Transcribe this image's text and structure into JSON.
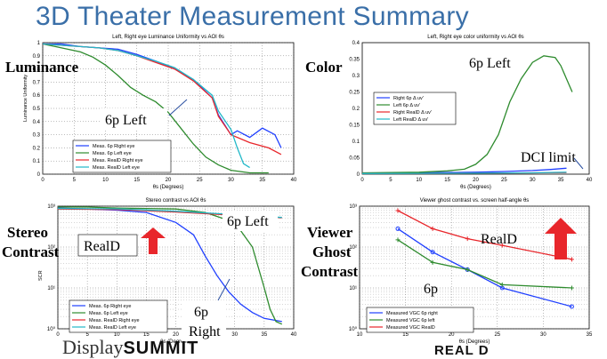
{
  "slide_title": "3D Theater Measurement Summary",
  "side_labels": {
    "luminance": "Luminance",
    "color": "Color",
    "stereo": [
      "Stereo",
      "Contrast"
    ],
    "ghost": [
      "Viewer",
      "Ghost",
      "Contrast"
    ]
  },
  "footer": {
    "brand_a": "Display",
    "brand_b": "SUMMIT",
    "reald_logo": "REAL D"
  },
  "colors": {
    "blue": "#1f3fff",
    "green": "#2e8b2e",
    "red": "#e8262b",
    "cyan": "#22b8c8",
    "arrow": "#e8262b"
  },
  "chart_data": [
    {
      "type": "line",
      "title": "Left, Right eye Luminance Uniformity vs AOI θs",
      "xlabel": "θs (Degrees)",
      "ylabel": "Luminance Uniformity",
      "xlim": [
        0,
        40
      ],
      "ylim": [
        0,
        1
      ],
      "xticks": [
        "0",
        "5",
        "10",
        "15",
        "20",
        "25",
        "30",
        "35",
        "40"
      ],
      "yticks": [
        "0",
        "0.1",
        "0.2",
        "0.3",
        "0.4",
        "0.5",
        "0.6",
        "0.7",
        "0.8",
        "0.9",
        "1"
      ],
      "grid": true,
      "legend_position": "bottom-left",
      "annotations": [
        {
          "text": "6p Left"
        }
      ],
      "series": [
        {
          "name": "Meas. 6p Right eye",
          "color": "blue",
          "x": [
            0,
            3,
            6,
            9,
            12,
            15,
            18,
            21,
            24,
            27,
            28,
            30,
            31,
            33,
            35,
            37,
            38
          ],
          "y": [
            0.99,
            0.99,
            0.97,
            0.96,
            0.95,
            0.91,
            0.86,
            0.8,
            0.72,
            0.58,
            0.45,
            0.3,
            0.33,
            0.28,
            0.35,
            0.3,
            0.2
          ]
        },
        {
          "name": "Meas. 6p Left eye",
          "color": "green",
          "x": [
            0,
            2,
            4,
            6,
            8,
            10,
            12,
            14,
            16,
            18,
            20,
            22,
            24,
            26,
            28,
            30,
            33,
            36
          ],
          "y": [
            0.99,
            0.97,
            0.95,
            0.93,
            0.89,
            0.83,
            0.75,
            0.66,
            0.6,
            0.55,
            0.47,
            0.35,
            0.23,
            0.13,
            0.07,
            0.03,
            0.01,
            0.01
          ]
        },
        {
          "name": "Meas. RealD Right eye",
          "color": "red",
          "x": [
            0,
            3,
            6,
            9,
            12,
            15,
            18,
            21,
            24,
            27,
            28,
            30,
            33,
            36,
            38
          ],
          "y": [
            0.99,
            0.98,
            0.97,
            0.96,
            0.94,
            0.9,
            0.85,
            0.8,
            0.71,
            0.58,
            0.44,
            0.3,
            0.24,
            0.2,
            0.15
          ]
        },
        {
          "name": "Meas. RealD Left eye",
          "color": "cyan",
          "x": [
            0,
            3,
            6,
            9,
            12,
            15,
            18,
            21,
            24,
            27,
            28,
            30,
            31,
            32,
            33
          ],
          "y": [
            0.99,
            0.98,
            0.97,
            0.96,
            0.94,
            0.9,
            0.86,
            0.81,
            0.72,
            0.6,
            0.48,
            0.34,
            0.2,
            0.08,
            0.05
          ]
        }
      ]
    },
    {
      "type": "line",
      "title": "Left, Right eye color uniformity vs AOI θs",
      "xlabel": "θs (Degrees)",
      "ylabel": "",
      "xlim": [
        0,
        40
      ],
      "ylim": [
        0,
        0.4
      ],
      "xticks": [
        "0",
        "5",
        "10",
        "15",
        "20",
        "25",
        "30",
        "35",
        "40"
      ],
      "yticks": [
        "0",
        "0.05",
        "0.1",
        "0.15",
        "0.2",
        "0.25",
        "0.3",
        "0.35",
        "0.4"
      ],
      "grid": false,
      "legend_position": "middle-left",
      "annotations": [
        {
          "text": "6p Left"
        },
        {
          "text": "DCI limit"
        }
      ],
      "series": [
        {
          "name": "Right 6p Δ uv'",
          "color": "blue",
          "x": [
            0,
            10,
            20,
            25,
            30,
            33,
            36
          ],
          "y": [
            0.003,
            0.004,
            0.006,
            0.008,
            0.011,
            0.014,
            0.018
          ]
        },
        {
          "name": "Left 6p Δ uv'",
          "color": "green",
          "x": [
            0,
            10,
            15,
            18,
            20,
            22,
            24,
            25,
            26,
            28,
            30,
            32,
            34,
            35,
            36,
            37
          ],
          "y": [
            0.004,
            0.006,
            0.01,
            0.015,
            0.03,
            0.06,
            0.12,
            0.17,
            0.22,
            0.29,
            0.34,
            0.36,
            0.355,
            0.33,
            0.29,
            0.25
          ]
        },
        {
          "name": "Right RealD Δ uv'",
          "color": "red",
          "x": [
            0,
            20,
            30,
            36
          ],
          "y": [
            0.002,
            0.003,
            0.004,
            0.005
          ]
        },
        {
          "name": "Left RealD Δ uv'",
          "color": "cyan",
          "x": [
            0,
            20,
            30,
            36
          ],
          "y": [
            0.002,
            0.003,
            0.004,
            0.006
          ]
        }
      ]
    },
    {
      "type": "line",
      "title": "Stereo contrast vs AOI θs",
      "xlabel": "θs (Degrees)",
      "ylabel": "SCR",
      "xlim": [
        0,
        40
      ],
      "ylim": [
        1,
        1000
      ],
      "yscale": "log",
      "xticks": [
        "0",
        "5",
        "10",
        "15",
        "20",
        "25",
        "30",
        "35",
        "40"
      ],
      "yticks": [
        "10⁰",
        "10¹",
        "10²",
        "10³"
      ],
      "grid": true,
      "legend_position": "bottom-left",
      "annotations": [
        {
          "text": "6p Left"
        },
        {
          "text": "RealD"
        },
        {
          "text": "6p"
        },
        {
          "text": "Right"
        }
      ],
      "series": [
        {
          "name": "Meas. 6p Right eye",
          "color": "blue",
          "x": [
            0,
            5,
            10,
            15,
            20,
            23,
            25,
            27,
            29,
            31,
            33,
            35,
            37,
            38
          ],
          "y": [
            900,
            850,
            800,
            700,
            400,
            200,
            60,
            20,
            8,
            4,
            2.5,
            1.8,
            1.6,
            1.5
          ]
        },
        {
          "name": "Meas. 6p Left eye",
          "color": "green",
          "x": [
            0,
            5,
            10,
            15,
            20,
            25,
            30,
            33,
            35,
            36,
            37,
            38
          ],
          "y": [
            950,
            950,
            900,
            880,
            850,
            700,
            400,
            100,
            10,
            3,
            1.5,
            1.3
          ]
        },
        {
          "name": "Meas. RealD Right eye",
          "color": "red",
          "x": [
            0,
            10,
            20,
            30,
            35,
            38
          ],
          "y": [
            850,
            830,
            720,
            600,
            550,
            520
          ]
        },
        {
          "name": "Meas. RealD Left eye",
          "color": "cyan",
          "x": [
            0,
            10,
            20,
            30,
            35,
            38
          ],
          "y": [
            880,
            860,
            750,
            620,
            560,
            530
          ]
        }
      ]
    },
    {
      "type": "line",
      "title": "Viewer ghost contrast vs. screen half-angle θs",
      "xlabel": "θs (Degrees)",
      "ylabel": "",
      "xlim": [
        5,
        38
      ],
      "ylim": [
        1,
        1000
      ],
      "yscale": "log",
      "xticks": [
        "10",
        "15",
        "20",
        "25",
        "30",
        "35"
      ],
      "yticks": [
        "10⁰",
        "10¹",
        "10²",
        "10³"
      ],
      "grid": true,
      "legend_position": "bottom-right",
      "annotations": [
        {
          "text": "RealD"
        },
        {
          "text": "6p"
        }
      ],
      "series": [
        {
          "name": "Measured VGC 6p right",
          "color": "blue",
          "x": [
            10.5,
            15.5,
            20.5,
            25.5,
            35.5
          ],
          "y": [
            280,
            75,
            28,
            10,
            3.5
          ]
        },
        {
          "name": "Measured VGC 6p left",
          "color": "green",
          "x": [
            10.5,
            15.5,
            20.5,
            25.5,
            35.5
          ],
          "y": [
            150,
            42,
            28,
            12,
            10
          ]
        },
        {
          "name": "Measured VGC RealD",
          "color": "red",
          "x": [
            10.5,
            15.5,
            20.5,
            25.5,
            35.5
          ],
          "y": [
            780,
            280,
            160,
            110,
            50
          ]
        }
      ]
    }
  ]
}
